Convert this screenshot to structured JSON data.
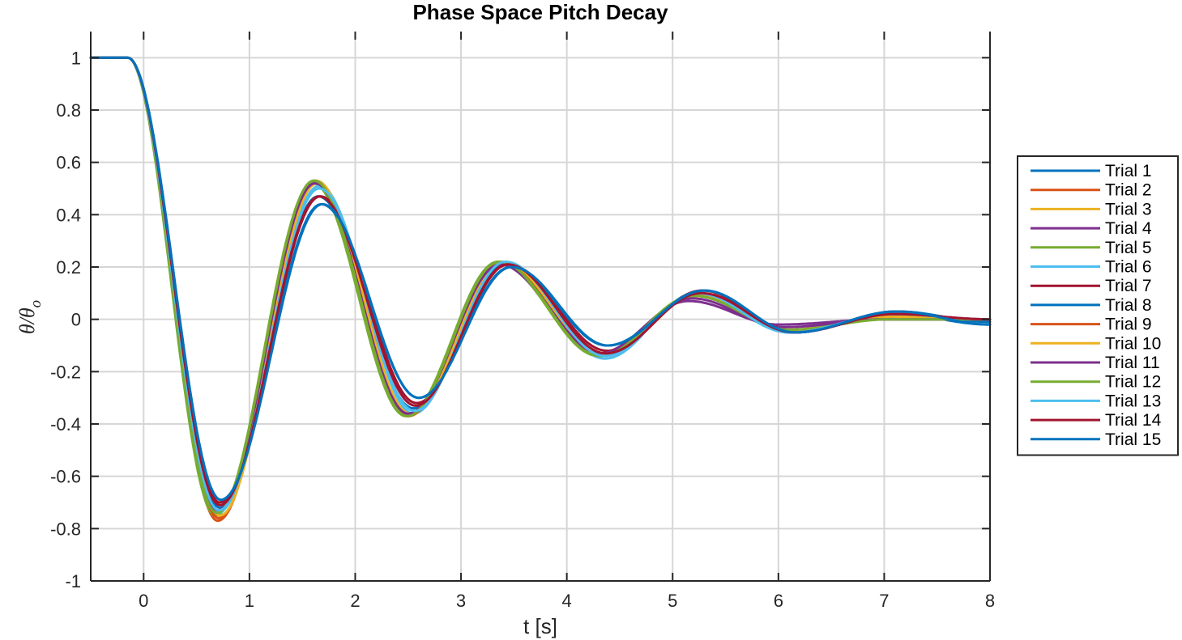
{
  "chart_data": {
    "type": "line",
    "title": "Phase Space Pitch Decay",
    "xlabel": "t [s]",
    "ylabel": {
      "main": "θ/θ",
      "sub": "o"
    },
    "xlim": [
      -0.5,
      8
    ],
    "ylim": [
      -1,
      1.1
    ],
    "xticks": [
      0,
      1,
      2,
      3,
      4,
      5,
      6,
      7,
      8
    ],
    "xtick_labels": [
      "0",
      "1",
      "2",
      "3",
      "4",
      "5",
      "6",
      "7",
      "8"
    ],
    "yticks": [
      -1,
      -0.8,
      -0.6,
      -0.4,
      -0.2,
      0,
      0.2,
      0.4,
      0.6,
      0.8,
      1
    ],
    "ytick_labels": [
      "-1",
      "-0.8",
      "-0.6",
      "-0.4",
      "-0.2",
      "0",
      "0.2",
      "0.4",
      "0.6",
      "0.8",
      "1"
    ],
    "grid": true,
    "legend_position": "outside-right",
    "series": [
      {
        "name": "Trial 1",
        "color": "#0072BD",
        "keypoints": [
          [
            -0.5,
            1.0
          ],
          [
            -0.15,
            1.0
          ],
          [
            0.72,
            -0.72
          ],
          [
            1.65,
            0.47
          ],
          [
            2.55,
            -0.34
          ],
          [
            3.42,
            0.21
          ],
          [
            4.35,
            -0.14
          ],
          [
            5.25,
            0.1
          ],
          [
            6.1,
            -0.05
          ],
          [
            7.1,
            0.02
          ],
          [
            8.0,
            -0.02
          ]
        ]
      },
      {
        "name": "Trial 2",
        "color": "#D95319",
        "keypoints": [
          [
            -0.5,
            1.0
          ],
          [
            -0.15,
            1.0
          ],
          [
            0.7,
            -0.77
          ],
          [
            1.64,
            0.52
          ],
          [
            2.5,
            -0.37
          ],
          [
            3.38,
            0.22
          ],
          [
            4.35,
            -0.14
          ],
          [
            5.22,
            0.09
          ],
          [
            6.1,
            -0.04
          ],
          [
            7.05,
            0.01
          ],
          [
            8.0,
            0.0
          ]
        ]
      },
      {
        "name": "Trial 3",
        "color": "#EDB120",
        "keypoints": [
          [
            -0.5,
            1.0
          ],
          [
            -0.15,
            1.0
          ],
          [
            0.71,
            -0.76
          ],
          [
            1.63,
            0.53
          ],
          [
            2.52,
            -0.36
          ],
          [
            3.4,
            0.22
          ],
          [
            4.33,
            -0.14
          ],
          [
            5.22,
            0.09
          ],
          [
            6.1,
            -0.04
          ],
          [
            7.05,
            0.01
          ],
          [
            8.0,
            0.0
          ]
        ]
      },
      {
        "name": "Trial 4",
        "color": "#7E2F8E",
        "keypoints": [
          [
            -0.5,
            1.0
          ],
          [
            -0.15,
            1.0
          ],
          [
            0.69,
            -0.74
          ],
          [
            1.61,
            0.53
          ],
          [
            2.5,
            -0.36
          ],
          [
            3.36,
            0.21
          ],
          [
            4.3,
            -0.13
          ],
          [
            5.15,
            0.07
          ],
          [
            6.0,
            -0.02
          ],
          [
            7.0,
            0.0
          ],
          [
            8.0,
            0.0
          ]
        ]
      },
      {
        "name": "Trial 5",
        "color": "#77AC30",
        "keypoints": [
          [
            -0.5,
            1.0
          ],
          [
            -0.15,
            1.0
          ],
          [
            0.68,
            -0.75
          ],
          [
            1.6,
            0.52
          ],
          [
            2.48,
            -0.37
          ],
          [
            3.35,
            0.22
          ],
          [
            4.3,
            -0.14
          ],
          [
            5.2,
            0.09
          ],
          [
            6.1,
            -0.04
          ],
          [
            7.05,
            0.01
          ],
          [
            8.0,
            0.0
          ]
        ]
      },
      {
        "name": "Trial 6",
        "color": "#4DBEEE",
        "keypoints": [
          [
            -0.5,
            1.0
          ],
          [
            -0.15,
            1.0
          ],
          [
            0.7,
            -0.74
          ],
          [
            1.66,
            0.51
          ],
          [
            2.55,
            -0.36
          ],
          [
            3.4,
            0.22
          ],
          [
            4.36,
            -0.15
          ],
          [
            5.22,
            0.1
          ],
          [
            6.1,
            -0.05
          ],
          [
            7.05,
            0.01
          ],
          [
            8.0,
            0.0
          ]
        ]
      },
      {
        "name": "Trial 7",
        "color": "#A2142F",
        "keypoints": [
          [
            -0.5,
            1.0
          ],
          [
            -0.15,
            1.0
          ],
          [
            0.72,
            -0.7
          ],
          [
            1.67,
            0.47
          ],
          [
            2.58,
            -0.32
          ],
          [
            3.45,
            0.21
          ],
          [
            4.38,
            -0.12
          ],
          [
            5.28,
            0.11
          ],
          [
            6.15,
            -0.05
          ],
          [
            7.1,
            0.02
          ],
          [
            8.0,
            0.0
          ]
        ]
      },
      {
        "name": "Trial 8",
        "color": "#0072BD",
        "keypoints": [
          [
            -0.5,
            1.0
          ],
          [
            -0.15,
            1.0
          ],
          [
            0.73,
            -0.69
          ],
          [
            1.68,
            0.44
          ],
          [
            2.6,
            -0.3
          ],
          [
            3.47,
            0.2
          ],
          [
            4.38,
            -0.1
          ],
          [
            5.3,
            0.11
          ],
          [
            6.15,
            -0.05
          ],
          [
            7.12,
            0.03
          ],
          [
            8.0,
            -0.01
          ]
        ]
      },
      {
        "name": "Trial 9",
        "color": "#D95319",
        "keypoints": [
          [
            -0.5,
            1.0
          ],
          [
            -0.15,
            1.0
          ],
          [
            0.71,
            -0.76
          ],
          [
            1.63,
            0.52
          ],
          [
            2.5,
            -0.37
          ],
          [
            3.38,
            0.22
          ],
          [
            4.34,
            -0.14
          ],
          [
            5.22,
            0.09
          ],
          [
            6.1,
            -0.04
          ],
          [
            7.05,
            0.01
          ],
          [
            8.0,
            0.0
          ]
        ]
      },
      {
        "name": "Trial 10",
        "color": "#EDB120",
        "keypoints": [
          [
            -0.5,
            1.0
          ],
          [
            -0.15,
            1.0
          ],
          [
            0.72,
            -0.75
          ],
          [
            1.64,
            0.52
          ],
          [
            2.52,
            -0.36
          ],
          [
            3.4,
            0.22
          ],
          [
            4.34,
            -0.14
          ],
          [
            5.22,
            0.09
          ],
          [
            6.1,
            -0.04
          ],
          [
            7.05,
            0.01
          ],
          [
            8.0,
            0.0
          ]
        ]
      },
      {
        "name": "Trial 11",
        "color": "#7E2F8E",
        "keypoints": [
          [
            -0.5,
            1.0
          ],
          [
            -0.15,
            1.0
          ],
          [
            0.7,
            -0.73
          ],
          [
            1.62,
            0.52
          ],
          [
            2.5,
            -0.36
          ],
          [
            3.37,
            0.21
          ],
          [
            4.32,
            -0.13
          ],
          [
            5.18,
            0.08
          ],
          [
            6.05,
            -0.03
          ],
          [
            7.0,
            0.0
          ],
          [
            8.0,
            0.0
          ]
        ]
      },
      {
        "name": "Trial 12",
        "color": "#77AC30",
        "keypoints": [
          [
            -0.5,
            1.0
          ],
          [
            -0.15,
            1.0
          ],
          [
            0.69,
            -0.74
          ],
          [
            1.61,
            0.53
          ],
          [
            2.49,
            -0.37
          ],
          [
            3.36,
            0.22
          ],
          [
            4.31,
            -0.14
          ],
          [
            5.2,
            0.09
          ],
          [
            6.1,
            -0.04
          ],
          [
            7.05,
            0.0
          ],
          [
            8.0,
            0.0
          ]
        ]
      },
      {
        "name": "Trial 13",
        "color": "#4DBEEE",
        "keypoints": [
          [
            -0.5,
            1.0
          ],
          [
            -0.15,
            1.0
          ],
          [
            0.71,
            -0.73
          ],
          [
            1.66,
            0.5
          ],
          [
            2.56,
            -0.35
          ],
          [
            3.42,
            0.22
          ],
          [
            4.36,
            -0.14
          ],
          [
            5.24,
            0.1
          ],
          [
            6.1,
            -0.05
          ],
          [
            7.08,
            0.02
          ],
          [
            8.0,
            0.0
          ]
        ]
      },
      {
        "name": "Trial 14",
        "color": "#A2142F",
        "keypoints": [
          [
            -0.5,
            1.0
          ],
          [
            -0.15,
            1.0
          ],
          [
            0.72,
            -0.71
          ],
          [
            1.66,
            0.47
          ],
          [
            2.57,
            -0.33
          ],
          [
            3.44,
            0.21
          ],
          [
            4.37,
            -0.13
          ],
          [
            5.27,
            0.1
          ],
          [
            6.15,
            -0.05
          ],
          [
            7.1,
            0.02
          ],
          [
            8.0,
            0.0
          ]
        ]
      },
      {
        "name": "Trial 15",
        "color": "#0072BD",
        "keypoints": [
          [
            -0.5,
            1.0
          ],
          [
            -0.15,
            1.0
          ],
          [
            0.73,
            -0.69
          ],
          [
            1.69,
            0.44
          ],
          [
            2.6,
            -0.3
          ],
          [
            3.48,
            0.2
          ],
          [
            4.39,
            -0.1
          ],
          [
            5.3,
            0.11
          ],
          [
            6.16,
            -0.05
          ],
          [
            7.12,
            0.03
          ],
          [
            8.0,
            -0.02
          ]
        ]
      }
    ]
  }
}
